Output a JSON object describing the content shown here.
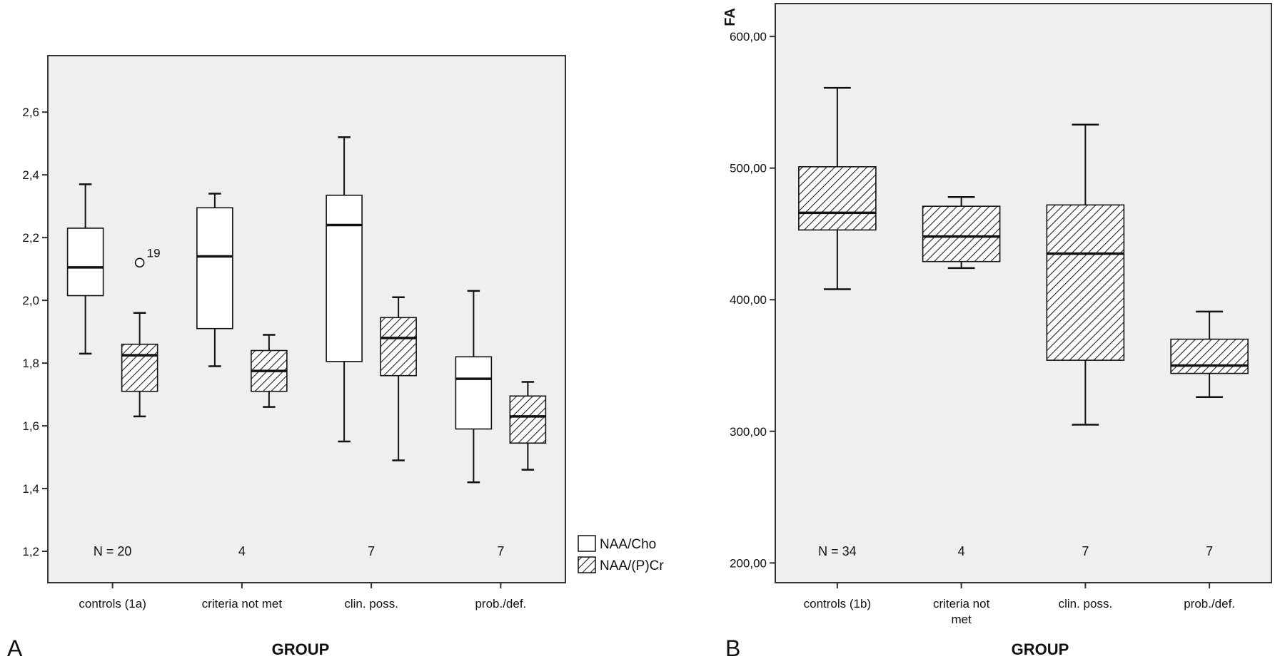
{
  "colors": {
    "plot_bg": "#efefef",
    "frame": "#333333",
    "box_fill": "#ffffff",
    "line": "#111111"
  },
  "chart_data": [
    {
      "panel_letter": "A",
      "type": "boxplot",
      "title": "",
      "xlabel": "GROUP",
      "ylabel": "",
      "ylim": [
        1.1,
        2.78
      ],
      "yticks": [
        1.2,
        1.4,
        1.6,
        1.8,
        2.0,
        2.2,
        2.4,
        2.6
      ],
      "yticklabels": [
        "1,2",
        "1,4",
        "1,6",
        "1,8",
        "2,0",
        "2,2",
        "2,4",
        "2,6"
      ],
      "categories": [
        "controls (1a)",
        "criteria not met",
        "clin. poss.",
        "prob./def."
      ],
      "n_labels": [
        "N = 20",
        "4",
        "7",
        "7"
      ],
      "legend": {
        "position": "right",
        "entries": [
          "NAA/Cho",
          "NAA/(P)Cr"
        ]
      },
      "series": [
        {
          "name": "NAA/Cho",
          "pattern": "open",
          "boxes": [
            {
              "min": 1.83,
              "q1": 2.015,
              "median": 2.105,
              "q3": 2.23,
              "max": 2.37
            },
            {
              "min": 1.79,
              "q1": 1.91,
              "median": 2.14,
              "q3": 2.295,
              "max": 2.34
            },
            {
              "min": 1.55,
              "q1": 1.805,
              "median": 2.24,
              "q3": 2.335,
              "max": 2.52
            },
            {
              "min": 1.42,
              "q1": 1.59,
              "median": 1.75,
              "q3": 1.82,
              "max": 2.03
            }
          ]
        },
        {
          "name": "NAA/(P)Cr",
          "pattern": "hatched",
          "boxes": [
            {
              "min": 1.63,
              "q1": 1.71,
              "median": 1.825,
              "q3": 1.86,
              "max": 1.96
            },
            {
              "min": 1.66,
              "q1": 1.71,
              "median": 1.775,
              "q3": 1.84,
              "max": 1.89
            },
            {
              "min": 1.49,
              "q1": 1.76,
              "median": 1.88,
              "q3": 1.945,
              "max": 2.01
            },
            {
              "min": 1.46,
              "q1": 1.545,
              "median": 1.63,
              "q3": 1.695,
              "max": 1.74
            }
          ]
        }
      ],
      "outliers": [
        {
          "series": "NAA/Cho",
          "category": "controls (1a)",
          "value": 2.12,
          "label": "19"
        }
      ]
    },
    {
      "panel_letter": "B",
      "type": "boxplot",
      "title": "",
      "xlabel": "GROUP",
      "ylabel": "FA",
      "ylim": [
        185,
        625
      ],
      "yticks": [
        200,
        300,
        400,
        500,
        600
      ],
      "yticklabels": [
        "200,00",
        "300,00",
        "400,00",
        "500,00",
        "600,00"
      ],
      "categories": [
        "controls (1b)",
        "criteria not met",
        "clin. poss.",
        "prob./def."
      ],
      "n_labels": [
        "N =  34",
        "4",
        "7",
        "7"
      ],
      "series": [
        {
          "pattern": "hatched",
          "boxes": [
            {
              "min": 408,
              "q1": 453,
              "median": 466,
              "q3": 501,
              "max": 561
            },
            {
              "min": 424,
              "q1": 429,
              "median": 448,
              "q3": 471,
              "max": 478
            },
            {
              "min": 305,
              "q1": 354,
              "median": 435,
              "q3": 472,
              "max": 533
            },
            {
              "min": 326,
              "q1": 344,
              "median": 350,
              "q3": 370,
              "max": 391
            }
          ]
        }
      ]
    }
  ]
}
